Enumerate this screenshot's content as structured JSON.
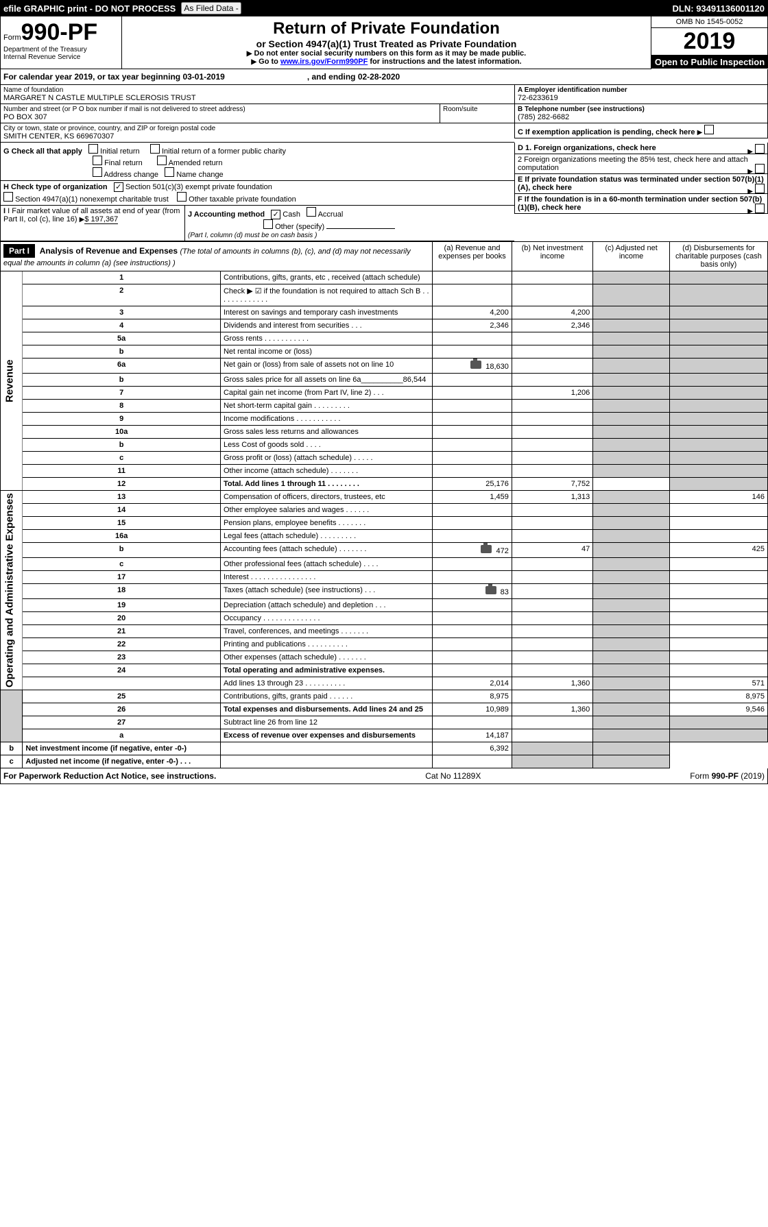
{
  "banner": {
    "left": "efile GRAPHIC print - DO NOT PROCESS",
    "mid_btn": "As Filed Data -",
    "right": "DLN: 93491136001120"
  },
  "hdr": {
    "form_word": "Form",
    "form_num": "990-PF",
    "dept": "Department of the Treasury",
    "irs": "Internal Revenue Service",
    "title": "Return of Private Foundation",
    "subtitle": "or Section 4947(a)(1) Trust Treated as Private Foundation",
    "warn1": "Do not enter social security numbers on this form as it may be made public.",
    "warn2_pre": "Go to ",
    "warn2_link": "www.irs.gov/Form990PF",
    "warn2_post": " for instructions and the latest information.",
    "omb": "OMB No 1545-0052",
    "year": "2019",
    "open": "Open to Public Inspection"
  },
  "cy": {
    "pre": "For calendar year 2019, or tax year beginning 03-01-2019",
    "post": ", and ending 02-28-2020"
  },
  "id": {
    "name_lbl": "Name of foundation",
    "name": "MARGARET N CASTLE MULTIPLE SCLEROSIS TRUST",
    "addr_lbl": "Number and street (or P O  box number if mail is not delivered to street address)",
    "addr": "PO BOX 307",
    "room_lbl": "Room/suite",
    "city_lbl": "City or town, state or province, country, and ZIP or foreign postal code",
    "city": "SMITH CENTER, KS  669670307",
    "A_lbl": "A Employer identification number",
    "A": "72-6233619",
    "B_lbl": "B Telephone number (see instructions)",
    "B": "(785) 282-6682",
    "C_lbl": "C If exemption application is pending, check here"
  },
  "G": {
    "lbl": "G Check all that apply",
    "c1": "Initial return",
    "c2": "Initial return of a former public charity",
    "c3": "Final return",
    "c4": "Amended return",
    "c5": "Address change",
    "c6": "Name change"
  },
  "D": {
    "d1": "D 1. Foreign organizations, check here",
    "d2": "2  Foreign organizations meeting the 85% test, check here and attach computation",
    "E": "E  If private foundation status was terminated under section 507(b)(1)(A), check here",
    "F": "F  If the foundation is in a 60-month termination under section 507(b)(1)(B), check here"
  },
  "H": {
    "lbl": "H Check type of organization",
    "h1": "Section 501(c)(3) exempt private foundation",
    "h2": "Section 4947(a)(1) nonexempt charitable trust",
    "h3": "Other taxable private foundation"
  },
  "I": {
    "lbl": "I Fair market value of all assets at end of year (from Part II, col  (c), line 16)",
    "val": "$  197,367"
  },
  "J": {
    "lbl": "J Accounting method",
    "j1": "Cash",
    "j2": "Accrual",
    "j3": "Other (specify)",
    "note": "(Part I, column (d) must be on cash basis )"
  },
  "part1": {
    "lbl": "Part I",
    "title": "Analysis of Revenue and Expenses",
    "note": "(The total of amounts in columns (b), (c), and (d) may not necessarily equal the amounts in column (a) (see instructions) )",
    "colA": "(a)  Revenue and expenses per books",
    "colB": "(b)  Net investment income",
    "colC": "(c)  Adjusted net income",
    "colD": "(d)  Disbursements for charitable purposes (cash basis only)"
  },
  "side": {
    "rev": "Revenue",
    "exp": "Operating and Administrative Expenses"
  },
  "rows": [
    {
      "n": "1",
      "d": "Contributions, gifts, grants, etc , received (attach schedule)"
    },
    {
      "n": "2",
      "d": "Check ▶ ☑ if the foundation is not required to attach Sch  B         .   .   .   .   .   .   .   .   .   .   .   .   ."
    },
    {
      "n": "3",
      "d": "Interest on savings and temporary cash investments",
      "a": "4,200",
      "b": "4,200"
    },
    {
      "n": "4",
      "d": "Dividends and interest from securities        .   .   .",
      "a": "2,346",
      "b": "2,346"
    },
    {
      "n": "5a",
      "d": "Gross rents          .   .   .   .   .   .   .   .   .   .   ."
    },
    {
      "n": "b",
      "d": "Net rental income or (loss)  "
    },
    {
      "n": "6a",
      "d": "Net gain or (loss) from sale of assets not on line 10",
      "a": "18,630",
      "cam": true
    },
    {
      "n": "b",
      "d": "Gross sales price for all assets on line 6a__________86,544"
    },
    {
      "n": "7",
      "d": "Capital gain net income (from Part IV, line 2)    .   .   .",
      "b": "1,206"
    },
    {
      "n": "8",
      "d": "Net short-term capital gain   .   .   .   .   .   .   .   .   ."
    },
    {
      "n": "9",
      "d": "Income modifications  .   .   .   .   .   .   .   .   .   .   ."
    },
    {
      "n": "10a",
      "d": "Gross sales less returns and allowances"
    },
    {
      "n": "b",
      "d": "Less  Cost of goods sold     .   .   .   ."
    },
    {
      "n": "c",
      "d": "Gross profit or (loss) (attach schedule)     .   .   .   .   ."
    },
    {
      "n": "11",
      "d": "Other income (attach schedule)      .   .   .   .   .   .   ."
    },
    {
      "n": "12",
      "d": "Total. Add lines 1 through 11    .   .   .   .   .   .   .   .",
      "a": "25,176",
      "b": "7,752",
      "bold": true
    },
    {
      "n": "13",
      "d": "Compensation of officers, directors, trustees, etc",
      "a": "1,459",
      "b": "1,313",
      "dd": "146"
    },
    {
      "n": "14",
      "d": "Other employee salaries and wages     .   .   .   .   .   ."
    },
    {
      "n": "15",
      "d": "Pension plans, employee benefits  .   .   .   .   .   .   ."
    },
    {
      "n": "16a",
      "d": "Legal fees (attach schedule)  .   .   .   .   .   .   .   .   ."
    },
    {
      "n": "b",
      "d": "Accounting fees (attach schedule)  .   .   .   .   .   .   .",
      "a": "472",
      "b": "47",
      "dd": "425",
      "cam": true
    },
    {
      "n": "c",
      "d": "Other professional fees (attach schedule)    .   .   .   ."
    },
    {
      "n": "17",
      "d": "Interest  .   .   .   .   .   .   .   .   .   .   .   .   .   .   .   ."
    },
    {
      "n": "18",
      "d": "Taxes (attach schedule) (see instructions)      .   .   .",
      "a": "83",
      "cam": true
    },
    {
      "n": "19",
      "d": "Depreciation (attach schedule) and depletion    .   .   ."
    },
    {
      "n": "20",
      "d": "Occupancy   .   .   .   .   .   .   .   .   .   .   .   .   .   ."
    },
    {
      "n": "21",
      "d": "Travel, conferences, and meetings  .   .   .   .   .   .   ."
    },
    {
      "n": "22",
      "d": "Printing and publications  .   .   .   .   .   .   .   .   .   ."
    },
    {
      "n": "23",
      "d": "Other expenses (attach schedule)  .   .   .   .   .   .   ."
    },
    {
      "n": "24",
      "d": "Total operating and administrative expenses.",
      "bold": true
    },
    {
      "n": "",
      "d": "Add lines 13 through 23   .   .   .   .   .   .   .   .   .   .",
      "a": "2,014",
      "b": "1,360",
      "dd": "571"
    },
    {
      "n": "25",
      "d": "Contributions, gifts, grants paid       .   .   .   .   .   .",
      "a": "8,975",
      "dd": "8,975"
    },
    {
      "n": "26",
      "d": "Total expenses and disbursements. Add lines 24 and 25",
      "a": "10,989",
      "b": "1,360",
      "dd": "9,546",
      "bold": true
    },
    {
      "n": "27",
      "d": "Subtract line 26 from line 12"
    },
    {
      "n": "a",
      "d": "Excess of revenue over expenses and disbursements",
      "a": "14,187",
      "bold": true
    },
    {
      "n": "b",
      "d": "Net investment income (if negative, enter -0-)",
      "b": "6,392",
      "bold": true
    },
    {
      "n": "c",
      "d": "Adjusted net income (if negative, enter -0-)   .   .   .",
      "bold": true
    }
  ],
  "footer": {
    "left": "For Paperwork Reduction Act Notice, see instructions.",
    "mid": "Cat  No  11289X",
    "right_pre": "Form ",
    "right_b": "990-PF",
    "right_post": " (2019)"
  },
  "layout": {
    "total_w": 1120,
    "left_col": 168,
    "right_col": 170,
    "table_cols_w": {
      "side": 28,
      "ln": 38,
      "desc": 430,
      "a": 150,
      "b": 150,
      "c": 146,
      "d": 178
    }
  },
  "colors": {
    "text": "#000000",
    "bg": "#ffffff",
    "link": "#0000ff",
    "grey": "#cccccc",
    "banner_bg": "#000000",
    "banner_fg": "#ffffff"
  }
}
